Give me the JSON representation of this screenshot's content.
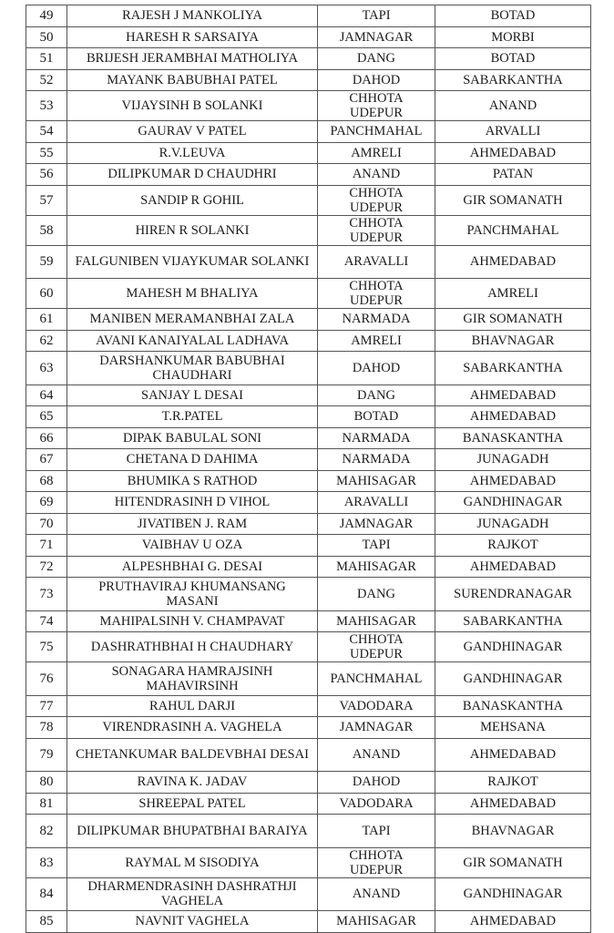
{
  "rows": [
    {
      "no": "49",
      "name": "RAJESH J MANKOLIYA",
      "from": "TAPI",
      "to": "BOTAD"
    },
    {
      "no": "50",
      "name": "HARESH R SARSAIYA",
      "from": "JAMNAGAR",
      "to": "MORBI"
    },
    {
      "no": "51",
      "name": "BRIJESH JERAMBHAI MATHOLIYA",
      "from": "DANG",
      "to": "BOTAD"
    },
    {
      "no": "52",
      "name": "MAYANK BABUBHAI PATEL",
      "from": "DAHOD",
      "to": "SABARKANTHA"
    },
    {
      "no": "53",
      "name": "VIJAYSINH B SOLANKI",
      "from": "CHHOTA UDEPUR",
      "to": "ANAND"
    },
    {
      "no": "54",
      "name": "GAURAV V PATEL",
      "from": "PANCHMAHAL",
      "to": "ARVALLI"
    },
    {
      "no": "55",
      "name": "R.V.LEUVA",
      "from": "AMRELI",
      "to": "AHMEDABAD"
    },
    {
      "no": "56",
      "name": "DILIPKUMAR D CHAUDHRI",
      "from": "ANAND",
      "to": "PATAN"
    },
    {
      "no": "57",
      "name": "SANDIP R GOHIL",
      "from": "CHHOTA UDEPUR",
      "to": "GIR SOMANATH"
    },
    {
      "no": "58",
      "name": "HIREN R SOLANKI",
      "from": "CHHOTA UDEPUR",
      "to": "PANCHMAHAL"
    },
    {
      "no": "59",
      "name": "FALGUNIBEN VIJAYKUMAR SOLANKI",
      "from": "ARAVALLI",
      "to": "AHMEDABAD",
      "double": true
    },
    {
      "no": "60",
      "name": "MAHESH M BHALIYA",
      "from": "CHHOTA UDEPUR",
      "to": "AMRELI"
    },
    {
      "no": "61",
      "name": "MANIBEN MERAMANBHAI ZALA",
      "from": "NARMADA",
      "to": "GIR SOMANATH"
    },
    {
      "no": "62",
      "name": "AVANI KANAIYALAL LADHAVA",
      "from": "AMRELI",
      "to": "BHAVNAGAR"
    },
    {
      "no": "63",
      "name": "DARSHANKUMAR BABUBHAI CHAUDHARI",
      "from": "DAHOD",
      "to": "SABARKANTHA",
      "double": true
    },
    {
      "no": "64",
      "name": "SANJAY L DESAI",
      "from": "DANG",
      "to": "AHMEDABAD"
    },
    {
      "no": "65",
      "name": "T.R.PATEL",
      "from": "BOTAD",
      "to": "AHMEDABAD"
    },
    {
      "no": "66",
      "name": "DIPAK BABULAL SONI",
      "from": "NARMADA",
      "to": "BANASKANTHA"
    },
    {
      "no": "67",
      "name": "CHETANA D DAHIMA",
      "from": "NARMADA",
      "to": "JUNAGADH"
    },
    {
      "no": "68",
      "name": "BHUMIKA S RATHOD",
      "from": "MAHISAGAR",
      "to": "AHMEDABAD"
    },
    {
      "no": "69",
      "name": "HITENDRASINH D VIHOL",
      "from": "ARAVALLI",
      "to": "GANDHINAGAR"
    },
    {
      "no": "70",
      "name": "JIVATIBEN J. RAM",
      "from": "JAMNAGAR",
      "to": "JUNAGADH"
    },
    {
      "no": "71",
      "name": "VAIBHAV U OZA",
      "from": "TAPI",
      "to": "RAJKOT"
    },
    {
      "no": "72",
      "name": "ALPESHBHAI G. DESAI",
      "from": "MAHISAGAR",
      "to": "AHMEDABAD"
    },
    {
      "no": "73",
      "name": "PRUTHAVIRAJ KHUMANSANG MASANI",
      "from": "DANG",
      "to": "SURENDRANAGAR",
      "double": true
    },
    {
      "no": "74",
      "name": "MAHIPALSINH V. CHAMPAVAT",
      "from": "MAHISAGAR",
      "to": "SABARKANTHA"
    },
    {
      "no": "75",
      "name": "DASHRATHBHAI H CHAUDHARY",
      "from": "CHHOTA UDEPUR",
      "to": "GANDHINAGAR"
    },
    {
      "no": "76",
      "name": "SONAGARA HAMRAJSINH MAHAVIRSINH",
      "from": "PANCHMAHAL",
      "to": "GANDHINAGAR",
      "double": true
    },
    {
      "no": "77",
      "name": "RAHUL DARJI",
      "from": "VADODARA",
      "to": "BANASKANTHA"
    },
    {
      "no": "78",
      "name": "VIRENDRASINH A. VAGHELA",
      "from": "JAMNAGAR",
      "to": "MEHSANA"
    },
    {
      "no": "79",
      "name": "CHETANKUMAR BALDEVBHAI DESAI",
      "from": "ANAND",
      "to": "AHMEDABAD",
      "double": true
    },
    {
      "no": "80",
      "name": "RAVINA K. JADAV",
      "from": "DAHOD",
      "to": "RAJKOT"
    },
    {
      "no": "81",
      "name": "SHREEPAL PATEL",
      "from": "VADODARA",
      "to": "AHMEDABAD"
    },
    {
      "no": "82",
      "name": "DILIPKUMAR BHUPATBHAI BARAIYA",
      "from": "TAPI",
      "to": "BHAVNAGAR",
      "double": true
    },
    {
      "no": "83",
      "name": "RAYMAL M SISODIYA",
      "from": "CHHOTA UDEPUR",
      "to": "GIR SOMANATH"
    },
    {
      "no": "84",
      "name": "DHARMENDRASINH DASHRATHJI VAGHELA",
      "from": "ANAND",
      "to": "GANDHINAGAR",
      "double": true
    },
    {
      "no": "85",
      "name": "NAVNIT VAGHELA",
      "from": "MAHISAGAR",
      "to": "AHMEDABAD"
    }
  ]
}
